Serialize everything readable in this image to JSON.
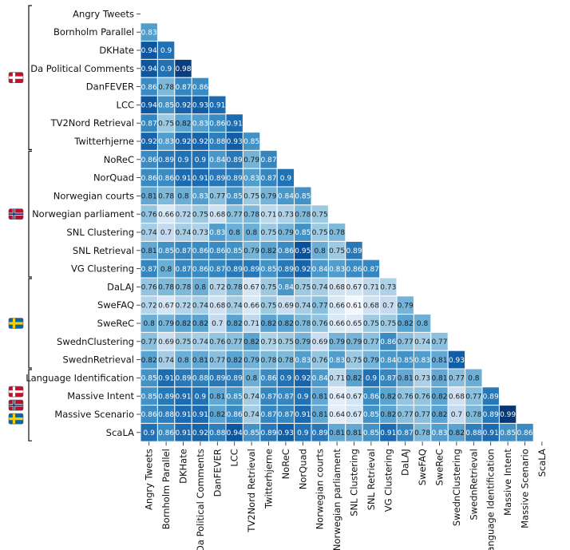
{
  "chart_data": {
    "type": "heatmap",
    "title": "",
    "labels": [
      "Angry Tweets",
      "Bornholm Parallel",
      "DKHate",
      "Da Political Comments",
      "DanFEVER",
      "LCC",
      "TV2Nord Retrieval",
      "Twitterhjerne",
      "NoReC",
      "NorQuad",
      "Norwegian courts",
      "Norwegian parliament",
      "SNL Clustering",
      "SNL Retrieval",
      "VG Clustering",
      "DaLAJ",
      "SweFAQ",
      "SweReC",
      "SwednClustering",
      "SwednRetrieval",
      "Language Identification",
      "Massive Intent",
      "Massive Scenario",
      "ScaLA"
    ],
    "rows": [
      [],
      [
        0.83
      ],
      [
        0.94,
        0.9
      ],
      [
        0.94,
        0.9,
        0.98
      ],
      [
        0.86,
        0.78,
        0.87,
        0.86
      ],
      [
        0.94,
        0.85,
        0.92,
        0.93,
        0.91
      ],
      [
        0.87,
        0.75,
        0.82,
        0.83,
        0.86,
        0.91
      ],
      [
        0.92,
        0.83,
        0.92,
        0.92,
        0.88,
        0.93,
        0.85
      ],
      [
        0.86,
        0.89,
        0.9,
        0.9,
        0.84,
        0.89,
        0.79,
        0.87
      ],
      [
        0.86,
        0.86,
        0.91,
        0.91,
        0.89,
        0.89,
        0.83,
        0.87,
        0.9
      ],
      [
        0.81,
        0.78,
        0.8,
        0.83,
        0.77,
        0.85,
        0.75,
        0.79,
        0.84,
        0.85
      ],
      [
        0.76,
        0.66,
        0.72,
        0.75,
        0.68,
        0.77,
        0.78,
        0.71,
        0.73,
        0.78,
        0.75
      ],
      [
        0.74,
        0.7,
        0.74,
        0.73,
        0.83,
        0.8,
        0.8,
        0.75,
        0.79,
        0.85,
        0.75,
        0.78
      ],
      [
        0.81,
        0.85,
        0.87,
        0.86,
        0.86,
        0.85,
        0.79,
        0.82,
        0.86,
        0.95,
        0.8,
        0.75,
        0.89
      ],
      [
        0.87,
        0.8,
        0.87,
        0.86,
        0.87,
        0.89,
        0.89,
        0.85,
        0.89,
        0.92,
        0.84,
        0.83,
        0.86,
        0.87
      ],
      [
        0.76,
        0.78,
        0.78,
        0.8,
        0.72,
        0.78,
        0.67,
        0.75,
        0.84,
        0.75,
        0.74,
        0.68,
        0.67,
        0.71,
        0.73
      ],
      [
        0.72,
        0.67,
        0.72,
        0.74,
        0.68,
        0.74,
        0.66,
        0.75,
        0.69,
        0.74,
        0.77,
        0.66,
        0.61,
        0.68,
        0.7,
        0.79
      ],
      [
        0.8,
        0.79,
        0.82,
        0.82,
        0.7,
        0.82,
        0.71,
        0.82,
        0.82,
        0.78,
        0.76,
        0.66,
        0.65,
        0.75,
        0.75,
        0.82,
        0.8
      ],
      [
        0.77,
        0.69,
        0.75,
        0.74,
        0.76,
        0.77,
        0.82,
        0.73,
        0.75,
        0.79,
        0.69,
        0.79,
        0.79,
        0.77,
        0.86,
        0.77,
        0.74,
        0.77
      ],
      [
        0.82,
        0.74,
        0.8,
        0.81,
        0.77,
        0.82,
        0.79,
        0.78,
        0.78,
        0.83,
        0.76,
        0.83,
        0.75,
        0.79,
        0.84,
        0.85,
        0.83,
        0.81,
        0.93
      ],
      [
        0.85,
        0.91,
        0.89,
        0.88,
        0.89,
        0.89,
        0.8,
        0.86,
        0.9,
        0.92,
        0.84,
        0.71,
        0.82,
        0.9,
        0.87,
        0.81,
        0.73,
        0.81,
        0.77,
        0.8
      ],
      [
        0.85,
        0.89,
        0.91,
        0.9,
        0.81,
        0.85,
        0.74,
        0.87,
        0.87,
        0.9,
        0.81,
        0.64,
        0.67,
        0.86,
        0.82,
        0.76,
        0.76,
        0.82,
        0.68,
        0.77,
        0.89
      ],
      [
        0.86,
        0.88,
        0.91,
        0.91,
        0.82,
        0.86,
        0.74,
        0.87,
        0.87,
        0.91,
        0.81,
        0.64,
        0.67,
        0.85,
        0.82,
        0.77,
        0.77,
        0.82,
        0.7,
        0.78,
        0.89,
        0.99
      ],
      [
        0.9,
        0.86,
        0.91,
        0.92,
        0.88,
        0.94,
        0.85,
        0.89,
        0.93,
        0.9,
        0.89,
        0.81,
        0.81,
        0.85,
        0.91,
        0.87,
        0.78,
        0.83,
        0.82,
        0.88,
        0.91,
        0.85,
        0.86
      ]
    ],
    "colormap": "Blues",
    "color_range": [
      0.6,
      1.0
    ],
    "cell_border_color": "#ffffff",
    "groups": [
      {
        "flags": [
          "denmark"
        ],
        "rows": [
          0,
          7
        ]
      },
      {
        "flags": [
          "norway"
        ],
        "rows": [
          8,
          14
        ]
      },
      {
        "flags": [
          "sweden"
        ],
        "rows": [
          15,
          19
        ]
      },
      {
        "flags": [
          "denmark",
          "norway",
          "sweden"
        ],
        "rows": [
          20,
          23
        ]
      }
    ],
    "flag_colors": {
      "denmark": {
        "field": "#c8102e",
        "cross": "#ffffff"
      },
      "norway": {
        "field": "#ba0c2f",
        "cross": "#ffffff",
        "inner": "#00205b"
      },
      "sweden": {
        "field": "#006aa7",
        "cross": "#fecc00"
      }
    }
  }
}
